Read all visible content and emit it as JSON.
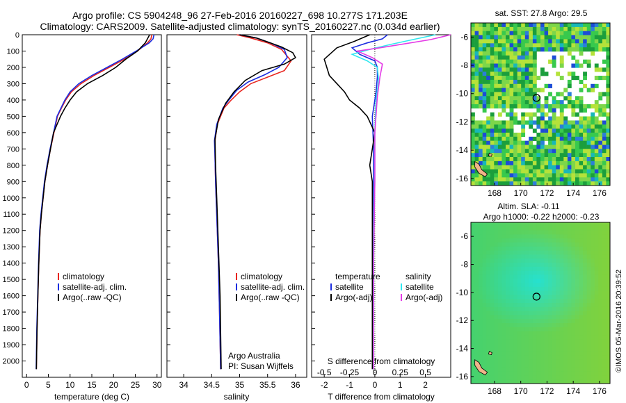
{
  "title": {
    "line1": "Argo profile: CS 5904248_96 27-Feb-2016 20160227_698 10.277S 171.203E",
    "line2": "Climatology: CARS2009. Satellite-adjusted climatology: synTS_20160227.nc (0.034d earlier)"
  },
  "colors": {
    "climatology": "#e8251f",
    "satellite": "#1b2de0",
    "argo": "#000000",
    "salinity_sat": "#30e8f0",
    "salinity_argo": "#e43ce6"
  },
  "chart_data": [
    {
      "type": "line",
      "panel": "temperature",
      "xlabel": "temperature (deg C)",
      "ylabel": "",
      "ylim": [
        2100,
        0
      ],
      "xlim": [
        -1,
        31
      ],
      "xticks": [
        0,
        5,
        10,
        15,
        20,
        25,
        30
      ],
      "yticks": [
        0,
        100,
        200,
        300,
        400,
        500,
        600,
        700,
        800,
        900,
        1000,
        1100,
        1200,
        1300,
        1400,
        1500,
        1600,
        1700,
        1800,
        1900,
        2000
      ],
      "legend": [
        "climatology",
        "satellite-adj. clim.",
        "Argo(..raw -QC)"
      ],
      "series": [
        {
          "name": "climatology",
          "color": "#e8251f",
          "x": [
            28.8,
            28.6,
            27.8,
            25.5,
            22.5,
            19,
            15.5,
            12.5,
            10.3,
            9,
            8,
            7.1,
            6.3,
            5.5,
            4.8,
            4.2,
            3.8,
            3.4,
            3.1,
            2.8,
            2.6,
            2.4,
            2.25
          ],
          "y": [
            0,
            25,
            50,
            100,
            150,
            200,
            250,
            300,
            350,
            400,
            450,
            500,
            600,
            700,
            800,
            900,
            1000,
            1100,
            1200,
            1400,
            1600,
            1800,
            2050
          ]
        },
        {
          "name": "satellite-adj. clim.",
          "color": "#1b2de0",
          "x": [
            29.3,
            29.1,
            28.2,
            25.2,
            22,
            18.5,
            15,
            12,
            10,
            8.8,
            7.9,
            7,
            6.2,
            5.4,
            4.7,
            4.1,
            3.7,
            3.3,
            3.0,
            2.75,
            2.55,
            2.35,
            2.2
          ],
          "y": [
            0,
            25,
            50,
            100,
            150,
            200,
            250,
            300,
            350,
            400,
            450,
            500,
            600,
            700,
            800,
            900,
            1000,
            1100,
            1200,
            1400,
            1600,
            1800,
            2050
          ]
        },
        {
          "name": "Argo(..raw -QC)",
          "color": "#000000",
          "x": [
            28.3,
            27.3,
            25.5,
            22.8,
            20.5,
            17.5,
            14,
            11.5,
            10,
            8.8,
            7.8,
            7,
            6.2,
            5.5,
            4.8,
            4.2,
            3.8,
            3.4,
            3.1,
            2.8,
            2.6,
            2.4,
            2.25
          ],
          "y": [
            0,
            50,
            100,
            150,
            200,
            250,
            300,
            350,
            400,
            450,
            500,
            550,
            600,
            700,
            800,
            900,
            1000,
            1100,
            1200,
            1400,
            1600,
            1800,
            2050
          ]
        }
      ]
    },
    {
      "type": "line",
      "panel": "salinity",
      "xlabel": "salinity",
      "ylabel": "",
      "ylim": [
        2100,
        0
      ],
      "xlim": [
        33.7,
        36.2
      ],
      "xticks": [
        34,
        34.5,
        35,
        35.5,
        36
      ],
      "xtick_labels": [
        "34",
        "34.5",
        "35",
        "35.5",
        "36"
      ],
      "legend": [
        "climatology",
        "satellite-adj. clim.",
        "Argo(..raw -QC)"
      ],
      "note": [
        "Argo Australia",
        "PI: Susan Wijffels"
      ],
      "series": [
        {
          "name": "climatology",
          "color": "#e8251f",
          "x": [
            34.95,
            35.2,
            35.5,
            35.75,
            35.92,
            35.8,
            35.5,
            35.2,
            35.0,
            34.85,
            34.72,
            34.6,
            34.56,
            34.56,
            34.57,
            34.59,
            34.62,
            34.64,
            34.66
          ],
          "y": [
            0,
            20,
            50,
            90,
            160,
            220,
            260,
            300,
            350,
            400,
            450,
            550,
            650,
            750,
            900,
            1100,
            1400,
            1700,
            2050
          ]
        },
        {
          "name": "satellite-adj. clim.",
          "color": "#1b2de0",
          "x": [
            35.0,
            35.3,
            35.55,
            35.8,
            35.85,
            35.7,
            35.45,
            35.15,
            34.95,
            34.82,
            34.7,
            34.59,
            34.55,
            34.56,
            34.57,
            34.59,
            34.62,
            34.64,
            34.66
          ],
          "y": [
            0,
            20,
            50,
            90,
            140,
            200,
            245,
            290,
            340,
            395,
            450,
            550,
            650,
            750,
            900,
            1100,
            1400,
            1700,
            2050
          ]
        },
        {
          "name": "Argo(..raw -QC)",
          "color": "#000000",
          "x": [
            35.0,
            35.3,
            35.55,
            35.75,
            35.95,
            36.0,
            35.8,
            35.4,
            35.1,
            34.9,
            34.75,
            34.62,
            34.56,
            34.57,
            34.59,
            34.62,
            34.65,
            34.67
          ],
          "y": [
            0,
            20,
            50,
            75,
            110,
            140,
            180,
            220,
            280,
            350,
            420,
            520,
            640,
            800,
            1000,
            1300,
            1600,
            2050
          ]
        }
      ]
    },
    {
      "type": "line",
      "panel": "difference",
      "xlabel": "T difference from climatology",
      "xlabel_top": "S difference from climatology",
      "ylim": [
        2100,
        0
      ],
      "xlim": [
        -2.5,
        3.0
      ],
      "xticks": [
        -2,
        -1,
        0,
        1,
        2
      ],
      "xtick_labels_top": [
        "-0.5",
        "-0.25",
        "0",
        "0.25",
        "0.5"
      ],
      "legend_left": [
        "temperature",
        "satellite",
        "Argo(-adj)"
      ],
      "legend_right": [
        "salinity",
        "satellite",
        "Argo(-adj)"
      ],
      "series": [
        {
          "name": "temperature satellite",
          "color": "#1b2de0",
          "x": [
            0.5,
            0.3,
            -0.3,
            -0.9,
            -0.6,
            0.0,
            0.1,
            0.1,
            0.05,
            -0.1,
            -0.05,
            -0.05,
            -0.05,
            -0.08,
            -0.1,
            -0.1
          ],
          "y": [
            0,
            25,
            50,
            80,
            120,
            160,
            200,
            260,
            350,
            500,
            700,
            900,
            1200,
            1500,
            1800,
            2050
          ]
        },
        {
          "name": "temperature Argo(-adj)",
          "color": "#000000",
          "x": [
            -0.2,
            -0.8,
            -1.5,
            -2.0,
            -1.8,
            -1.5,
            -1.2,
            -1.0,
            -0.6,
            -0.3,
            0.0,
            -0.1,
            -0.2,
            -0.1,
            -0.1,
            -0.1,
            -0.1
          ],
          "y": [
            0,
            40,
            80,
            150,
            250,
            300,
            350,
            400,
            450,
            500,
            600,
            700,
            800,
            900,
            1200,
            1600,
            2050
          ]
        },
        {
          "name": "salinity satellite",
          "color": "#30e8f0",
          "x": [
            2.4,
            1.5,
            0.6,
            -0.2,
            -0.9,
            -0.3,
            0.1,
            0.15,
            0.05,
            0.0,
            0.0,
            -0.05,
            -0.05,
            -0.05
          ],
          "y": [
            0,
            30,
            60,
            90,
            120,
            160,
            200,
            280,
            400,
            600,
            900,
            1300,
            1700,
            2050
          ]
        },
        {
          "name": "salinity Argo(-adj)",
          "color": "#e43ce6",
          "x": [
            3.0,
            2.2,
            1.2,
            0.2,
            -0.7,
            -0.1,
            0.3,
            0.2,
            0.1,
            0.0,
            0.0,
            -0.05,
            -0.05
          ],
          "y": [
            0,
            30,
            55,
            80,
            100,
            140,
            180,
            260,
            380,
            600,
            900,
            1400,
            2050
          ]
        }
      ]
    },
    {
      "type": "heatmap",
      "panel": "sst_map",
      "title": "sat. SST: 27.8  Argo: 29.5",
      "xticks": [
        168,
        170,
        172,
        174,
        176
      ],
      "yticks": [
        -6,
        -8,
        -10,
        -12,
        -14,
        -16
      ],
      "xlim": [
        166.2,
        176.8
      ],
      "ylim": [
        -16.5,
        -5.0
      ],
      "argo_position": {
        "lon": 171.2,
        "lat": -10.3
      }
    },
    {
      "type": "heatmap",
      "panel": "sla_map",
      "title_line1": "Altim. SLA: -0.11",
      "title_line2": "Argo h1000: -0.22 h2000: -0.23",
      "xticks": [
        168,
        170,
        172,
        174,
        176
      ],
      "yticks": [
        -6,
        -8,
        -10,
        -12,
        -14,
        -16
      ],
      "xlim": [
        166.2,
        176.8
      ],
      "ylim": [
        -16.5,
        -5.0
      ],
      "argo_position": {
        "lon": 171.2,
        "lat": -10.3
      }
    }
  ],
  "credit": "©IMOS 05-Mar-2016 20:39:52"
}
